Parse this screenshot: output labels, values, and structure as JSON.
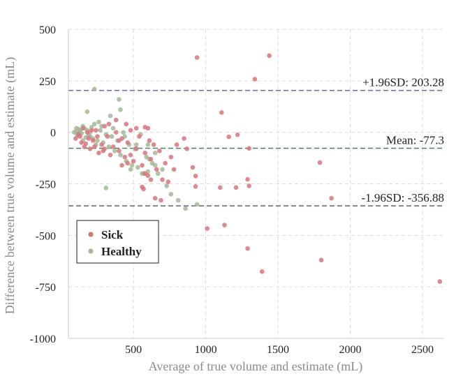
{
  "chart_data": {
    "type": "scatter",
    "xlabel": "Average of true volume and estimate (mL)",
    "ylabel": "Difference between true volume and estimate (mL)",
    "xlim": [
      50,
      2650
    ],
    "ylim": [
      -1000,
      500
    ],
    "xticks": [
      500,
      1000,
      1500,
      2000,
      2500
    ],
    "yticks": [
      500,
      250,
      0,
      -250,
      -500,
      -750,
      -1000
    ],
    "grid": true,
    "legend_position": "lower-left",
    "reference_lines": [
      {
        "label": "+1.96SD: 203.28",
        "value": 203.28,
        "color": "#6a6a8a"
      },
      {
        "label": "Mean: -77.3",
        "value": -77.3,
        "color": "#4d7d63"
      },
      {
        "label": "-1.96SD: -356.88",
        "value": -356.88,
        "color": "#6a6a8a"
      }
    ],
    "series": [
      {
        "name": "Sick",
        "color": "#d9737e",
        "points": [
          [
            940,
            363
          ],
          [
            1440,
            372
          ],
          [
            1340,
            258
          ],
          [
            1110,
            96
          ],
          [
            1160,
            -22
          ],
          [
            1220,
            -12
          ],
          [
            1300,
            -78
          ],
          [
            1790,
            -147
          ],
          [
            910,
            -170
          ],
          [
            930,
            -212
          ],
          [
            1290,
            -228
          ],
          [
            1210,
            -268
          ],
          [
            1100,
            -268
          ],
          [
            1300,
            -260
          ],
          [
            930,
            -263
          ],
          [
            1870,
            -320
          ],
          [
            1010,
            -467
          ],
          [
            1130,
            -450
          ],
          [
            1290,
            -564
          ],
          [
            1390,
            -676
          ],
          [
            1800,
            -620
          ],
          [
            2620,
            -724
          ],
          [
            100,
            -30
          ],
          [
            120,
            -10
          ],
          [
            140,
            -50
          ],
          [
            150,
            20
          ],
          [
            160,
            -70
          ],
          [
            180,
            0
          ],
          [
            200,
            -80
          ],
          [
            220,
            -40
          ],
          [
            240,
            10
          ],
          [
            260,
            -100
          ],
          [
            280,
            -60
          ],
          [
            300,
            30
          ],
          [
            320,
            -20
          ],
          [
            340,
            -110
          ],
          [
            360,
            -70
          ],
          [
            380,
            0
          ],
          [
            400,
            -90
          ],
          [
            420,
            -30
          ],
          [
            440,
            -120
          ],
          [
            460,
            -50
          ],
          [
            480,
            10
          ],
          [
            500,
            -140
          ],
          [
            520,
            -80
          ],
          [
            540,
            -20
          ],
          [
            560,
            -160
          ],
          [
            580,
            -100
          ],
          [
            600,
            20
          ],
          [
            620,
            -130
          ],
          [
            640,
            -60
          ],
          [
            660,
            -180
          ],
          [
            680,
            -90
          ],
          [
            700,
            -230
          ],
          [
            720,
            -150
          ],
          [
            740,
            -240
          ],
          [
            760,
            -120
          ],
          [
            780,
            -180
          ],
          [
            800,
            -60
          ],
          [
            850,
            -30
          ],
          [
            870,
            -80
          ],
          [
            560,
            -265
          ],
          [
            570,
            -275
          ],
          [
            600,
            -210
          ],
          [
            650,
            -320
          ],
          [
            690,
            -330
          ],
          [
            580,
            -200
          ],
          [
            620,
            -230
          ],
          [
            460,
            -150
          ],
          [
            420,
            -160
          ],
          [
            300,
            -80
          ],
          [
            250,
            -20
          ],
          [
            330,
            40
          ],
          [
            380,
            60
          ],
          [
            450,
            40
          ],
          [
            520,
            20
          ],
          [
            580,
            25
          ],
          [
            610,
            -40
          ],
          [
            480,
            -110
          ],
          [
            400,
            -40
          ],
          [
            230,
            -70
          ],
          [
            210,
            10
          ],
          [
            190,
            -30
          ],
          [
            170,
            -55
          ],
          [
            130,
            -20
          ],
          [
            290,
            -90
          ]
        ]
      },
      {
        "name": "Healthy",
        "color": "#a3b894",
        "points": [
          [
            230,
            210
          ],
          [
            400,
            160
          ],
          [
            180,
            100
          ],
          [
            340,
            80
          ],
          [
            410,
            110
          ],
          [
            90,
            0
          ],
          [
            100,
            5
          ],
          [
            110,
            -10
          ],
          [
            120,
            15
          ],
          [
            130,
            5
          ],
          [
            140,
            -5
          ],
          [
            150,
            30
          ],
          [
            160,
            20
          ],
          [
            170,
            -25
          ],
          [
            180,
            10
          ],
          [
            190,
            -15
          ],
          [
            200,
            0
          ],
          [
            210,
            25
          ],
          [
            220,
            -30
          ],
          [
            230,
            40
          ],
          [
            250,
            -40
          ],
          [
            270,
            10
          ],
          [
            290,
            -50
          ],
          [
            310,
            -10
          ],
          [
            330,
            -70
          ],
          [
            350,
            -20
          ],
          [
            370,
            -90
          ],
          [
            390,
            -40
          ],
          [
            410,
            -110
          ],
          [
            430,
            0
          ],
          [
            450,
            -140
          ],
          [
            470,
            -60
          ],
          [
            490,
            -160
          ],
          [
            510,
            -80
          ],
          [
            530,
            -170
          ],
          [
            550,
            -10
          ],
          [
            570,
            -200
          ],
          [
            590,
            -120
          ],
          [
            610,
            -130
          ],
          [
            630,
            -150
          ],
          [
            650,
            -160
          ],
          [
            670,
            -200
          ],
          [
            700,
            -180
          ],
          [
            730,
            -260
          ],
          [
            760,
            -300
          ],
          [
            810,
            -330
          ],
          [
            860,
            -370
          ],
          [
            940,
            -350
          ],
          [
            310,
            -270
          ],
          [
            480,
            -180
          ],
          [
            560,
            -200
          ],
          [
            600,
            -190
          ],
          [
            520,
            -60
          ],
          [
            440,
            -20
          ],
          [
            360,
            20
          ],
          [
            280,
            30
          ],
          [
            260,
            50
          ],
          [
            240,
            -60
          ],
          [
            200,
            -20
          ],
          [
            150,
            -40
          ],
          [
            125,
            10
          ],
          [
            115,
            -15
          ],
          [
            105,
            20
          ],
          [
            600,
            -60
          ],
          [
            650,
            -100
          ]
        ]
      }
    ]
  }
}
